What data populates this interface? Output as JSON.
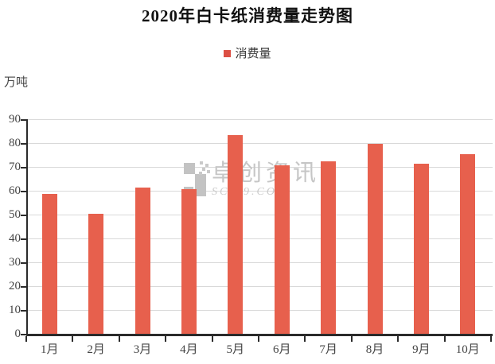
{
  "title": "2020年白卡纸消费量走势图",
  "legend": {
    "label": "消费量",
    "marker_color": "#dc4f44"
  },
  "y_unit": "万吨",
  "watermark": {
    "logo": "pixel-grid-logo",
    "text": "卓创资讯",
    "subtext": "SCI99.COM",
    "color": "#c6c6c6"
  },
  "colors": {
    "bar": "#e7604d",
    "axis": "#2b2b2b",
    "gridline": "#d9d9d9",
    "tick_label": "#444444",
    "title_text": "#111111",
    "background": "#ffffff"
  },
  "chart_data": {
    "type": "bar",
    "categories": [
      "1月",
      "2月",
      "3月",
      "4月",
      "5月",
      "6月",
      "7月",
      "8月",
      "9月",
      "10月"
    ],
    "values": [
      58.6,
      50.2,
      61.2,
      60.6,
      83.5,
      70.8,
      72.2,
      79.6,
      71.4,
      75.4
    ],
    "series_name": "消费量",
    "title": "2020年白卡纸消费量走势图",
    "xlabel": "",
    "ylabel": "万吨",
    "ylim": [
      0,
      90
    ],
    "ytick_step": 10,
    "grid": true,
    "legend_position": "top"
  }
}
